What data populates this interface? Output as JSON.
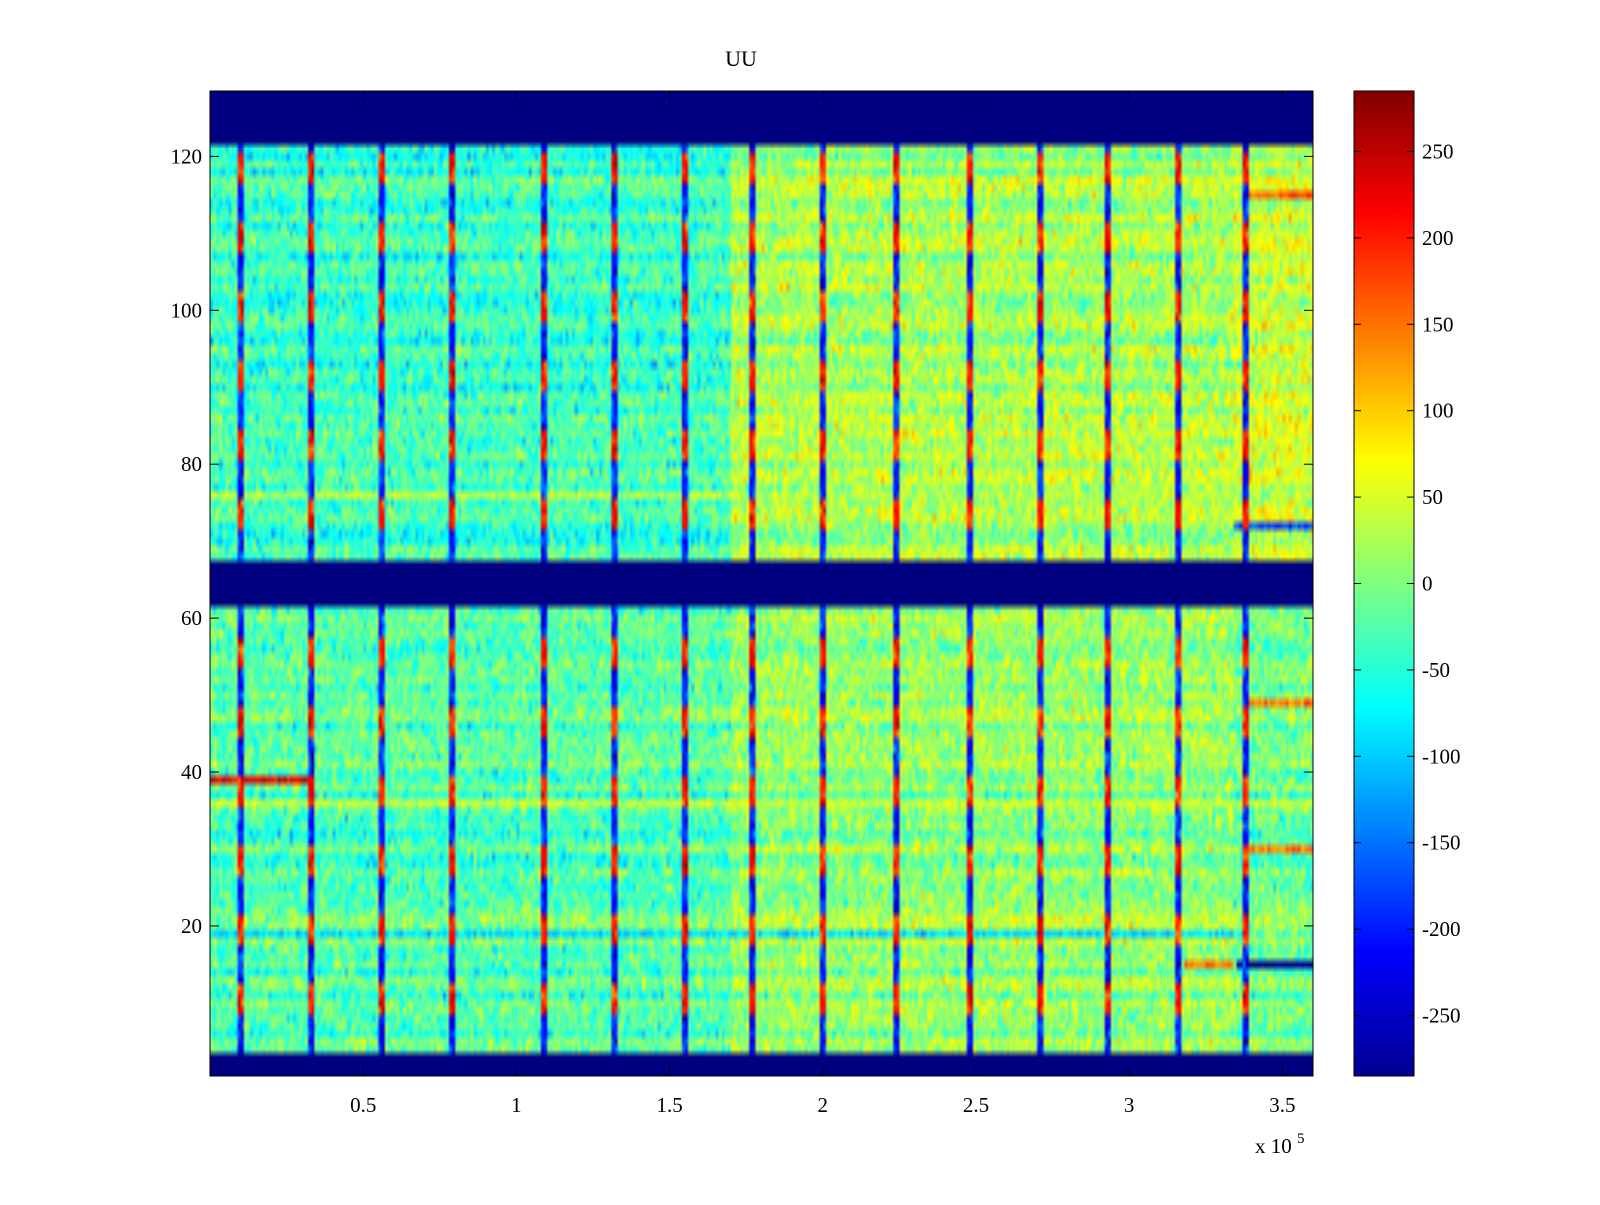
{
  "chart_data": {
    "type": "heatmap",
    "title": "UU",
    "xlabel": "",
    "ylabel": "",
    "x_exponent_label": "x 10",
    "x_exponent": "5",
    "xlim": [
      0,
      360000
    ],
    "ylim": [
      0.5,
      128.5
    ],
    "x_ticks": [
      {
        "value": 50000,
        "label": "0.5"
      },
      {
        "value": 100000,
        "label": "1"
      },
      {
        "value": 150000,
        "label": "1.5"
      },
      {
        "value": 200000,
        "label": "2"
      },
      {
        "value": 250000,
        "label": "2.5"
      },
      {
        "value": 300000,
        "label": "3"
      },
      {
        "value": 350000,
        "label": "3.5"
      }
    ],
    "y_ticks": [
      {
        "value": 20,
        "label": "20"
      },
      {
        "value": 40,
        "label": "40"
      },
      {
        "value": 60,
        "label": "60"
      },
      {
        "value": 80,
        "label": "80"
      },
      {
        "value": 100,
        "label": "100"
      },
      {
        "value": 120,
        "label": "120"
      }
    ],
    "colorbar": {
      "colormap": "jet",
      "clim": [
        -285,
        285
      ],
      "ticks": [
        {
          "value": 250,
          "label": "250"
        },
        {
          "value": 200,
          "label": "200"
        },
        {
          "value": 150,
          "label": "150"
        },
        {
          "value": 100,
          "label": "100"
        },
        {
          "value": 50,
          "label": "50"
        },
        {
          "value": 0,
          "label": "0"
        },
        {
          "value": -50,
          "label": "-50"
        },
        {
          "value": -100,
          "label": "-100"
        },
        {
          "value": -150,
          "label": "-150"
        },
        {
          "value": -200,
          "label": "-200"
        },
        {
          "value": -250,
          "label": "-250"
        }
      ]
    },
    "masked_row_bands": [
      {
        "from": 121.5,
        "to": 128.5,
        "value": -285
      },
      {
        "from": 61.5,
        "to": 67.5,
        "value": -285
      },
      {
        "from": 0.5,
        "to": 3.5,
        "value": -285
      }
    ],
    "time_segments": [
      {
        "from": 0,
        "to": 170000,
        "upper_rows_value": -40,
        "lower_rows_value": -25
      },
      {
        "from": 170000,
        "to": 334000,
        "upper_rows_value": 20,
        "lower_rows_value": 10
      },
      {
        "from": 334000,
        "to": 360000,
        "upper_rows_value": 40,
        "lower_rows_value": -10
      }
    ],
    "spike_columns": [
      10000,
      33000,
      56000,
      79000,
      109000,
      132000,
      155000,
      177000,
      200000,
      224000,
      248000,
      271000,
      293000,
      316000,
      338000
    ],
    "row_streaks": [
      {
        "row": 39,
        "from": 0,
        "to": 33000,
        "value": 230
      },
      {
        "row": 15,
        "from": 335000,
        "to": 360000,
        "value": -285
      },
      {
        "row": 15,
        "from": 318000,
        "to": 334000,
        "value": 150
      },
      {
        "row": 115,
        "from": 338000,
        "to": 360000,
        "value": 160
      },
      {
        "row": 72,
        "from": 334000,
        "to": 360000,
        "value": -180
      },
      {
        "row": 30,
        "from": 338000,
        "to": 360000,
        "value": 140
      },
      {
        "row": 49,
        "from": 338000,
        "to": 360000,
        "value": 150
      },
      {
        "row": 19,
        "from": 0,
        "to": 334000,
        "value": -90
      },
      {
        "row": 36,
        "from": 0,
        "to": 360000,
        "value": 40
      },
      {
        "row": 76,
        "from": 0,
        "to": 334000,
        "value": 30
      }
    ]
  }
}
